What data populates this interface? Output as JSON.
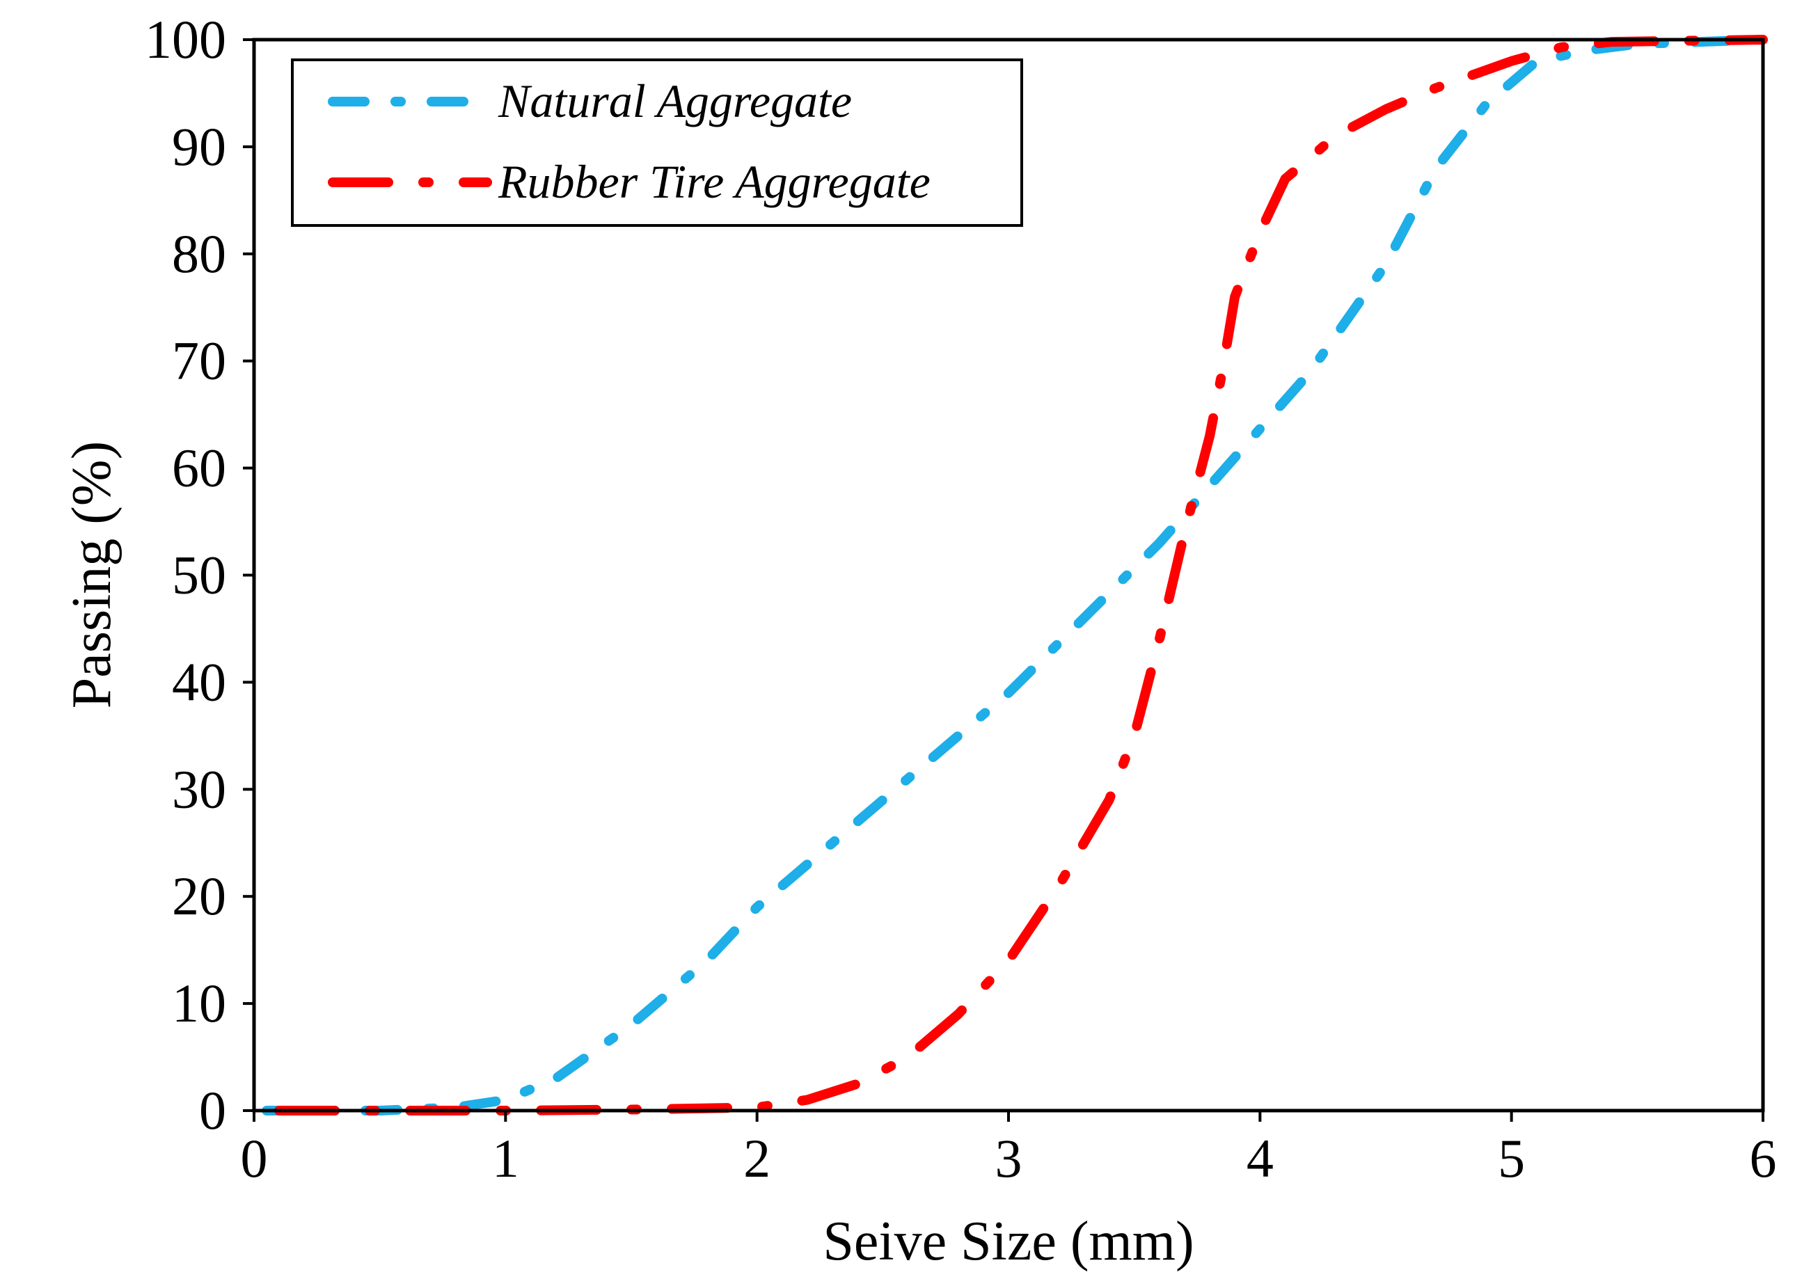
{
  "chart_data": {
    "type": "line",
    "title": "",
    "xlabel": "Seive Size (mm)",
    "ylabel": "Passing (%)",
    "xlim": [
      0,
      6
    ],
    "ylim": [
      0,
      100
    ],
    "xticks": [
      "0",
      "1",
      "2",
      "3",
      "4",
      "5",
      "6"
    ],
    "yticks": [
      "0",
      "10",
      "20",
      "30",
      "40",
      "50",
      "60",
      "70",
      "80",
      "90",
      "100"
    ],
    "grid": false,
    "legend_position": "top-left",
    "series": [
      {
        "name": "Natural Aggregate",
        "color": "#1EAEE8",
        "line_style": "dash-dot",
        "x": [
          0.05,
          0.5,
          0.8,
          1.0,
          1.2,
          1.5,
          1.8,
          2.0,
          2.3,
          2.6,
          3.0,
          3.3,
          3.6,
          3.9,
          4.2,
          4.5,
          4.7,
          4.9,
          5.1,
          5.3,
          5.5,
          6.0
        ],
        "y": [
          0,
          0,
          0.3,
          1,
          3,
          8,
          14,
          19,
          25,
          31,
          39,
          46,
          53,
          61,
          69,
          79,
          88,
          94,
          98,
          99,
          99.6,
          100
        ]
      },
      {
        "name": "Rubber Tire Aggregate",
        "color": "#FF0000",
        "line_style": "long-dash-dot",
        "x": [
          0.1,
          0.5,
          1.0,
          1.5,
          2.0,
          2.2,
          2.4,
          2.6,
          2.8,
          3.0,
          3.2,
          3.4,
          3.5,
          3.6,
          3.7,
          3.8,
          3.85,
          3.9,
          4.0,
          4.1,
          4.3,
          4.5,
          4.7,
          5.0,
          5.2,
          5.4,
          6.0
        ],
        "y": [
          0,
          0,
          0,
          0.1,
          0.3,
          1,
          2.5,
          5,
          9,
          14,
          21,
          29,
          35,
          44,
          54,
          63,
          69,
          76,
          82,
          87,
          91,
          93.5,
          95.5,
          98,
          99.3,
          99.8,
          100
        ]
      }
    ]
  }
}
